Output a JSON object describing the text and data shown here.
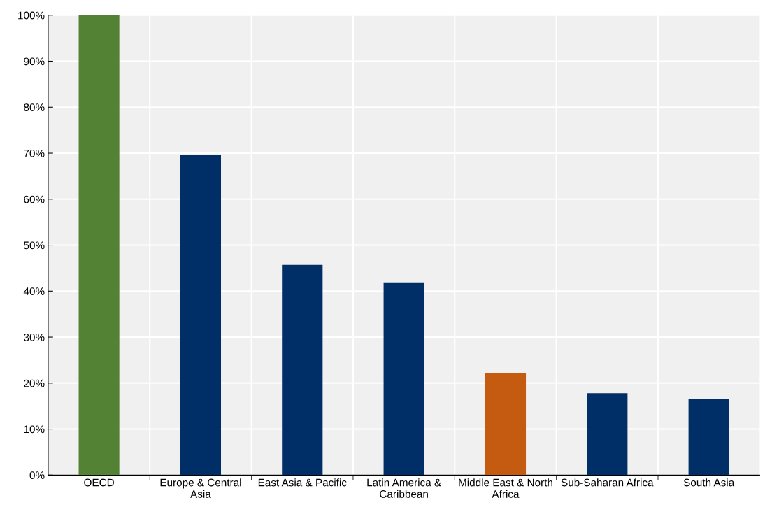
{
  "chart_data": {
    "type": "bar",
    "categories": [
      "OECD",
      "Europe & Central\nAsia",
      "East Asia & Pacific",
      "Latin America &\nCaribbean",
      "Middle East & North\nAfrica",
      "Sub-Saharan Africa",
      "South Asia"
    ],
    "values": [
      100,
      69.6,
      45.7,
      41.9,
      22.2,
      17.8,
      16.6
    ],
    "colors": [
      "#548235",
      "#002f67",
      "#002f67",
      "#002f67",
      "#c55a11",
      "#002f67",
      "#002f67"
    ],
    "ylim": [
      0,
      100
    ],
    "yticks": [
      {
        "value": 0,
        "label": "0%"
      },
      {
        "value": 10,
        "label": "10%"
      },
      {
        "value": 20,
        "label": "20%"
      },
      {
        "value": 30,
        "label": "30%"
      },
      {
        "value": 40,
        "label": "40%"
      },
      {
        "value": 50,
        "label": "50%"
      },
      {
        "value": 60,
        "label": "60%"
      },
      {
        "value": 70,
        "label": "70%"
      },
      {
        "value": 80,
        "label": "80%"
      },
      {
        "value": 90,
        "label": "90%"
      },
      {
        "value": 100,
        "label": "100%"
      }
    ],
    "grid": true
  }
}
